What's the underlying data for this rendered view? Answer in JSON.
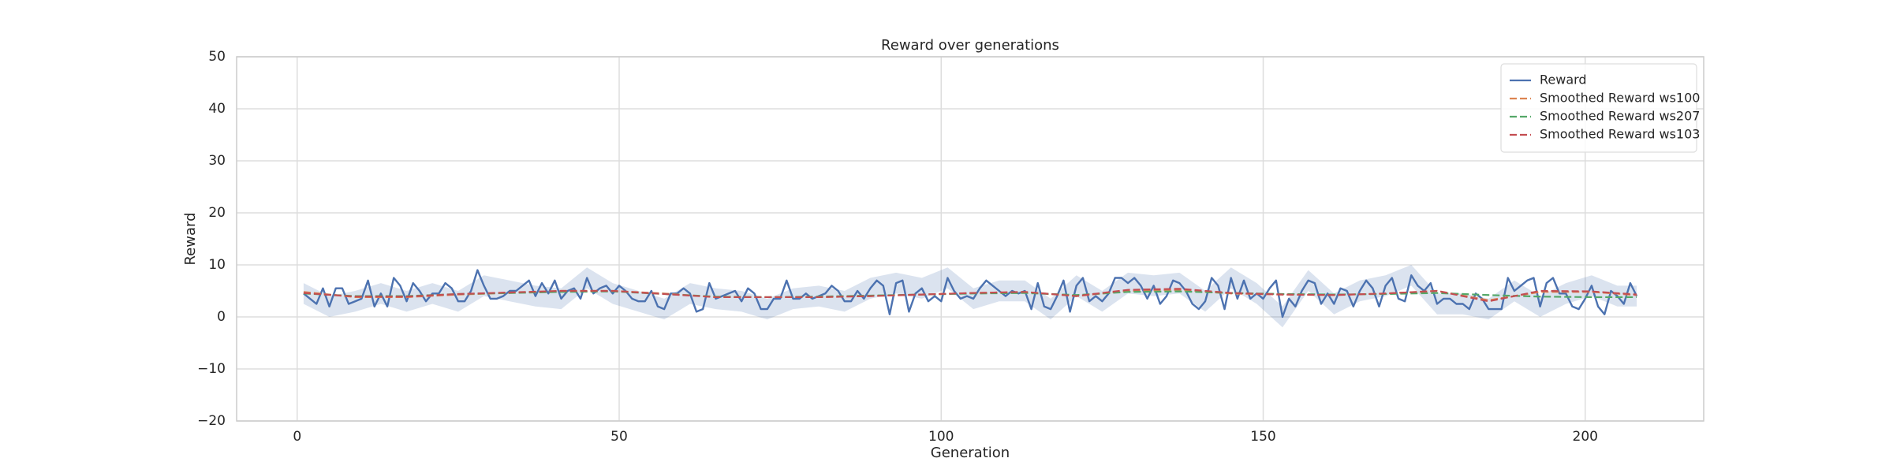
{
  "chart_data": {
    "type": "line",
    "title": "Reward over generations",
    "xlabel": "Generation",
    "ylabel": "Reward",
    "xlim": [
      -9.4,
      218.4
    ],
    "ylim": [
      -20,
      50
    ],
    "xticks": [
      0,
      50,
      100,
      150,
      200
    ],
    "yticks": [
      {
        "value": -20,
        "label": "−20"
      },
      {
        "value": -10,
        "label": "−10"
      },
      0,
      10,
      20,
      30,
      40,
      50
    ],
    "grid": true,
    "legend": "upper right",
    "band": {
      "color": "#4c72b0",
      "x": [
        1,
        5,
        9,
        13,
        17,
        21,
        25,
        29,
        33,
        37,
        41,
        45,
        49,
        53,
        57,
        61,
        65,
        69,
        73,
        77,
        81,
        85,
        89,
        93,
        97,
        101,
        105,
        109,
        113,
        117,
        121,
        125,
        129,
        133,
        137,
        141,
        145,
        149,
        153,
        157,
        161,
        165,
        169,
        173,
        177,
        181,
        185,
        189,
        193,
        197,
        201,
        205,
        208
      ],
      "lower": [
        2.5,
        0,
        1,
        2.5,
        1,
        2.5,
        1,
        4,
        3,
        2,
        1.5,
        5.5,
        2.5,
        1,
        -0.5,
        2.5,
        1.5,
        1,
        -0.5,
        1.5,
        2,
        1,
        3.5,
        4.5,
        3.5,
        5.5,
        1.5,
        3,
        3,
        -0.5,
        4,
        1,
        4.5,
        4,
        4.5,
        1,
        5.5,
        2.5,
        -2,
        5,
        0.5,
        3,
        4,
        6,
        0.5,
        0.5,
        -0.5,
        3,
        0,
        2.5,
        4,
        2,
        2
      ],
      "upper": [
        6.5,
        4,
        5,
        6.5,
        5,
        6.5,
        5,
        8,
        7,
        6,
        5.5,
        9.5,
        6.5,
        5,
        3.5,
        6.5,
        5.5,
        5,
        3.5,
        5.5,
        6,
        5,
        7.5,
        8.5,
        7.5,
        9.5,
        5.5,
        7,
        7,
        3.5,
        8,
        5,
        8.5,
        8,
        8.5,
        5,
        9.5,
        6.5,
        2,
        9,
        4.5,
        7,
        8,
        10,
        4.5,
        4.5,
        3.5,
        7,
        4,
        6.5,
        8,
        6,
        6
      ]
    },
    "series": [
      {
        "name": "Reward",
        "color": "#4c72b0",
        "dash": false,
        "x": [
          1,
          2,
          3,
          4,
          5,
          6,
          7,
          8,
          9,
          10,
          11,
          12,
          13,
          14,
          15,
          16,
          17,
          18,
          19,
          20,
          21,
          22,
          23,
          24,
          25,
          26,
          27,
          28,
          29,
          30,
          31,
          32,
          33,
          34,
          35,
          36,
          37,
          38,
          39,
          40,
          41,
          42,
          43,
          44,
          45,
          46,
          47,
          48,
          49,
          50,
          51,
          52,
          53,
          54,
          55,
          56,
          57,
          58,
          59,
          60,
          61,
          62,
          63,
          64,
          65,
          66,
          67,
          68,
          69,
          70,
          71,
          72,
          73,
          74,
          75,
          76,
          77,
          78,
          79,
          80,
          81,
          82,
          83,
          84,
          85,
          86,
          87,
          88,
          89,
          90,
          91,
          92,
          93,
          94,
          95,
          96,
          97,
          98,
          99,
          100,
          101,
          102,
          103,
          104,
          105,
          106,
          107,
          108,
          109,
          110,
          111,
          112,
          113,
          114,
          115,
          116,
          117,
          118,
          119,
          120,
          121,
          122,
          123,
          124,
          125,
          126,
          127,
          128,
          129,
          130,
          131,
          132,
          133,
          134,
          135,
          136,
          137,
          138,
          139,
          140,
          141,
          142,
          143,
          144,
          145,
          146,
          147,
          148,
          149,
          150,
          151,
          152,
          153,
          154,
          155,
          156,
          157,
          158,
          159,
          160,
          161,
          162,
          163,
          164,
          165,
          166,
          167,
          168,
          169,
          170,
          171,
          172,
          173,
          174,
          175,
          176,
          177,
          178,
          179,
          180,
          181,
          182,
          183,
          184,
          185,
          186,
          187,
          188,
          189,
          190,
          191,
          192,
          193,
          194,
          195,
          196,
          197,
          198,
          199,
          200,
          201,
          202,
          203,
          204,
          205,
          206,
          207,
          208
        ],
        "values": [
          4.5,
          3.5,
          2.5,
          5.5,
          2,
          5.5,
          5.5,
          2.5,
          3,
          3.5,
          7,
          2,
          4.5,
          2,
          7.5,
          6,
          3,
          6.5,
          5,
          3,
          4.5,
          4.5,
          6.5,
          5.5,
          3,
          3,
          5,
          9,
          6,
          3.5,
          3.5,
          4,
          5,
          5,
          6,
          7,
          4,
          6.5,
          4.5,
          7,
          3.5,
          5,
          5.5,
          3.5,
          7.5,
          4.5,
          5.5,
          6,
          4.5,
          6,
          5,
          3.5,
          3,
          3,
          5,
          2,
          1.5,
          4.5,
          4.5,
          5.5,
          4.5,
          1,
          1.5,
          6.5,
          3.5,
          4,
          4.5,
          5,
          3,
          5.5,
          4.5,
          1.5,
          1.5,
          3.5,
          3.5,
          7,
          3.5,
          3.5,
          4.5,
          3.5,
          4,
          4.5,
          6,
          5,
          3,
          3,
          5,
          3.5,
          5.5,
          7,
          6,
          0.5,
          6.5,
          7,
          1,
          4.5,
          5.5,
          3,
          4,
          3,
          7.5,
          5,
          3.5,
          4,
          3.5,
          5.5,
          7,
          6,
          5,
          4,
          5,
          4.5,
          5,
          1.5,
          6.5,
          2,
          1.5,
          4,
          7,
          1,
          6,
          7.5,
          3,
          4,
          3,
          4.5,
          7.5,
          7.5,
          6.5,
          7.5,
          6,
          3.5,
          6,
          2.5,
          4,
          7,
          6.5,
          5,
          2.5,
          1.5,
          3,
          7.5,
          6,
          1.5,
          7.5,
          3.5,
          7,
          3.5,
          4.5,
          3.5,
          5.5,
          7,
          0,
          3.5,
          2,
          5,
          7,
          6.5,
          2.5,
          4.5,
          2.5,
          5.5,
          5,
          2,
          5,
          7,
          5.5,
          2,
          6,
          7.5,
          3.5,
          3,
          8,
          6,
          5,
          6.5,
          2.5,
          3.5,
          3.5,
          2.5,
          2.5,
          1.5,
          4.5,
          3.5,
          1.5,
          1.5,
          1.5,
          7.5,
          5,
          6,
          7,
          7.5,
          2,
          6.5,
          7.5,
          4.5,
          4.5,
          2,
          1.5,
          3.5,
          6,
          2,
          0.5,
          5,
          4,
          2.5,
          6.5,
          4
        ]
      },
      {
        "name": "Smoothed Reward ws100",
        "color": "#dd8452",
        "dash": true,
        "x": [
          1,
          9,
          17,
          25,
          33,
          41,
          49,
          57,
          65,
          73,
          81,
          89,
          97,
          105,
          113,
          121,
          129,
          137,
          145,
          153,
          161,
          169,
          177,
          185,
          193,
          201,
          208
        ],
        "values": [
          4.8,
          3.8,
          3.8,
          4.3,
          4.6,
          5.0,
          5.0,
          4.5,
          3.8,
          3.8,
          3.8,
          4.0,
          4.3,
          4.6,
          4.8,
          4.0,
          5.0,
          5.2,
          4.5,
          4.3,
          4.2,
          4.5,
          5.0,
          3.2,
          4.8,
          4.8,
          4.2
        ]
      },
      {
        "name": "Smoothed Reward ws207",
        "color": "#55a868",
        "dash": true,
        "x": [
          1,
          9,
          17,
          25,
          33,
          41,
          49,
          57,
          65,
          73,
          81,
          89,
          97,
          105,
          113,
          121,
          129,
          137,
          145,
          153,
          161,
          169,
          177,
          185,
          193,
          201,
          208
        ],
        "values": [
          4.5,
          4.0,
          4.0,
          4.4,
          4.6,
          4.8,
          4.9,
          4.4,
          3.9,
          3.8,
          3.9,
          4.1,
          4.3,
          4.5,
          4.6,
          4.2,
          4.8,
          4.9,
          4.6,
          4.4,
          4.3,
          4.4,
          4.6,
          4.2,
          3.9,
          3.8,
          3.8
        ]
      },
      {
        "name": "Smoothed Reward ws103",
        "color": "#c44e52",
        "dash": true,
        "x": [
          1,
          9,
          17,
          25,
          33,
          41,
          49,
          57,
          65,
          73,
          81,
          89,
          97,
          105,
          113,
          121,
          129,
          137,
          145,
          153,
          161,
          169,
          177,
          185,
          193,
          201,
          208
        ],
        "values": [
          4.6,
          3.9,
          3.9,
          4.4,
          4.7,
          5.0,
          5.0,
          4.4,
          3.8,
          3.8,
          3.8,
          4.0,
          4.3,
          4.6,
          4.8,
          4.0,
          5.2,
          5.4,
          4.6,
          4.3,
          4.2,
          4.5,
          5.0,
          3.0,
          5.0,
          4.9,
          4.3
        ]
      }
    ]
  }
}
